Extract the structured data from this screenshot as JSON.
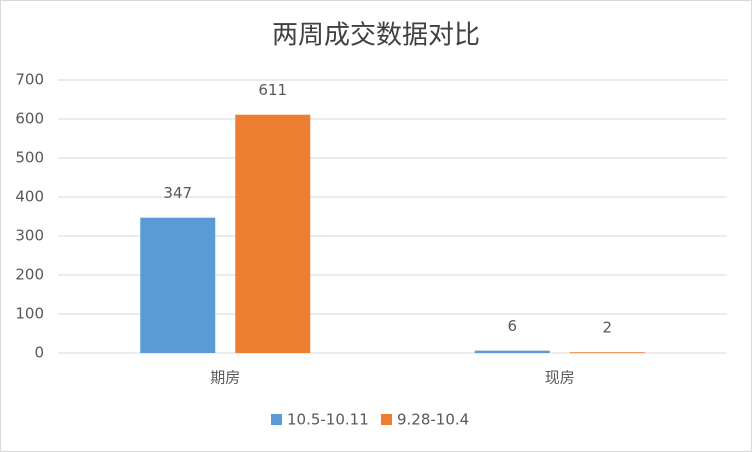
{
  "chart_data": {
    "type": "bar",
    "title": "两周成交数据对比",
    "categories": [
      "期房",
      "现房"
    ],
    "series": [
      {
        "name": "10.5-10.11",
        "color": "#5b9bd5",
        "values": [
          347,
          6
        ]
      },
      {
        "name": "9.28-10.4",
        "color": "#ed7d31",
        "values": [
          611,
          2
        ]
      }
    ],
    "ylim": [
      0,
      700
    ],
    "yticks": [
      0,
      100,
      200,
      300,
      400,
      500,
      600,
      700
    ],
    "grid": true,
    "legend": "bottom",
    "data_labels": true
  }
}
